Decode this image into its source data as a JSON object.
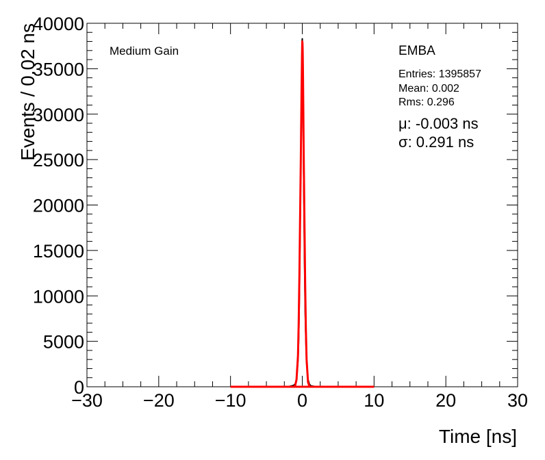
{
  "chart_data": {
    "type": "line",
    "title": "",
    "xlabel": "Time [ns]",
    "ylabel": "Events / 0.02 ns",
    "xlim": [
      -30,
      30
    ],
    "ylim": [
      0,
      40000
    ],
    "xticks": [
      -30,
      -20,
      -10,
      0,
      10,
      20,
      30
    ],
    "xtick_labels": [
      "−30",
      "−20",
      "−10",
      "0",
      "10",
      "20",
      "30"
    ],
    "yticks": [
      0,
      5000,
      10000,
      15000,
      20000,
      25000,
      30000,
      35000,
      40000
    ],
    "ytick_labels": [
      "0",
      "5000",
      "10000",
      "15000",
      "20000",
      "25000",
      "30000",
      "35000",
      "40000"
    ],
    "corner_label": "Medium Gain",
    "stats": {
      "title": "EMBA",
      "entries": "Entries: 1395857",
      "mean": "Mean: 0.002",
      "rms": "Rms: 0.296"
    },
    "fit": {
      "mu_text": "μ: -0.003 ns",
      "sigma_text": "σ: 0.291 ns",
      "mean": -0.003,
      "sigma": 0.291,
      "range": [
        -10,
        10
      ]
    },
    "grid": false,
    "series": [
      {
        "x": [
          -10.0,
          -2.0,
          -1.2,
          -1.0,
          -0.8,
          -0.6,
          -0.5,
          -0.4,
          -0.3,
          -0.2,
          -0.14,
          -0.1,
          -0.06,
          -0.04,
          -0.02,
          0.0,
          0.02,
          0.04,
          0.06,
          0.1,
          0.14,
          0.2,
          0.3,
          0.4,
          0.5,
          0.6,
          0.8,
          1.0,
          1.2,
          2.0,
          10.0
        ],
        "values": [
          0,
          0,
          150,
          300,
          700,
          2800,
          5200,
          10000,
          17000,
          25000,
          30000,
          33500,
          36000,
          37300,
          38100,
          38300,
          37900,
          37000,
          35600,
          32000,
          27500,
          22000,
          14200,
          8200,
          5000,
          2600,
          800,
          280,
          100,
          0,
          0
        ],
        "color": "#000000"
      }
    ],
    "fit_curve": {
      "x": [
        -10.0,
        -1.2,
        -1.0,
        -0.8,
        -0.6,
        -0.5,
        -0.4,
        -0.3,
        -0.2,
        -0.14,
        -0.1,
        -0.06,
        -0.04,
        -0.02,
        0.0,
        0.02,
        0.04,
        0.06,
        0.1,
        0.14,
        0.2,
        0.3,
        0.4,
        0.5,
        0.6,
        0.8,
        1.0,
        1.2,
        10.0
      ],
      "values": [
        0,
        0,
        100,
        800,
        3400,
        7000,
        12300,
        18900,
        25200,
        29600,
        32500,
        35000,
        36200,
        37200,
        38000,
        37900,
        37500,
        36700,
        34300,
        30800,
        25400,
        18300,
        11400,
        6300,
        3000,
        500,
        50,
        0,
        0
      ],
      "color": "#ff0000"
    }
  }
}
